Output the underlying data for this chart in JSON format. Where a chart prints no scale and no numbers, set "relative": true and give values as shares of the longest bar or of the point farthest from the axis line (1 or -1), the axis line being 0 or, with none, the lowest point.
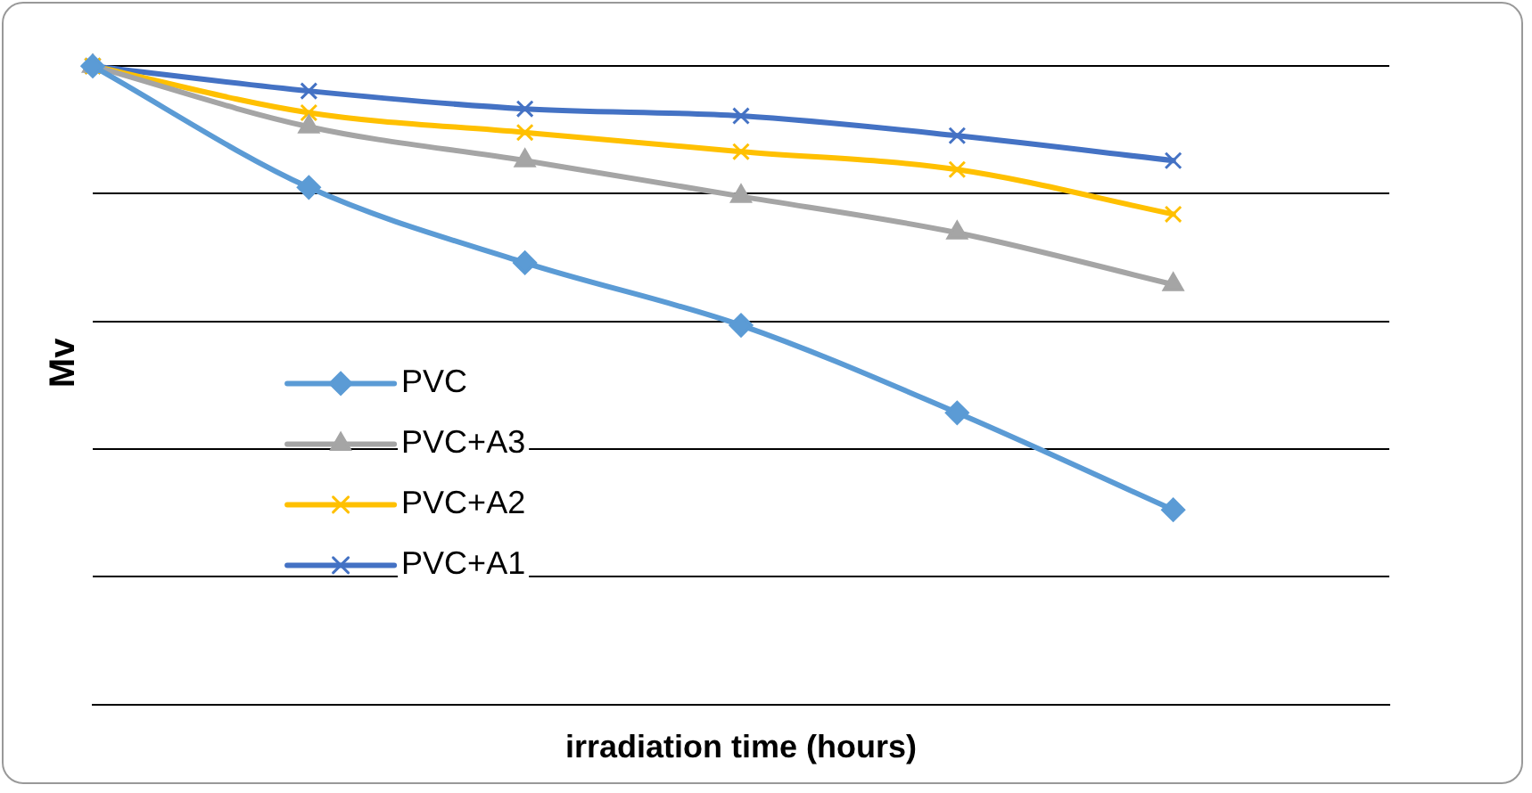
{
  "chart_data": {
    "type": "line",
    "xlabel": "irradiation time (hours)",
    "ylabel": "Mv",
    "relative": true,
    "categories": [
      null,
      null,
      null,
      null,
      null,
      null,
      null
    ],
    "grid": "y",
    "legend": "bottom left",
    "series": [
      {
        "name": "PVC",
        "color": "#5b9bd5",
        "marker": "diamond",
        "values": [
          1,
          0.81,
          0.692,
          0.594,
          0.457,
          0.305,
          null
        ]
      },
      {
        "name": "PVC+A3",
        "color": "#a5a5a5",
        "marker": "triangle",
        "values": [
          1,
          0.905,
          0.852,
          0.796,
          0.739,
          0.658,
          null
        ]
      },
      {
        "name": "PVC+A2",
        "color": "#ffc000",
        "marker": "cross",
        "values": [
          1,
          0.927,
          0.896,
          0.866,
          0.838,
          0.768,
          null
        ]
      },
      {
        "name": "PVC+A1",
        "color": "#4472c4",
        "marker": "cross",
        "values": [
          1,
          0.961,
          0.933,
          0.922,
          0.891,
          0.852,
          null
        ]
      }
    ]
  }
}
